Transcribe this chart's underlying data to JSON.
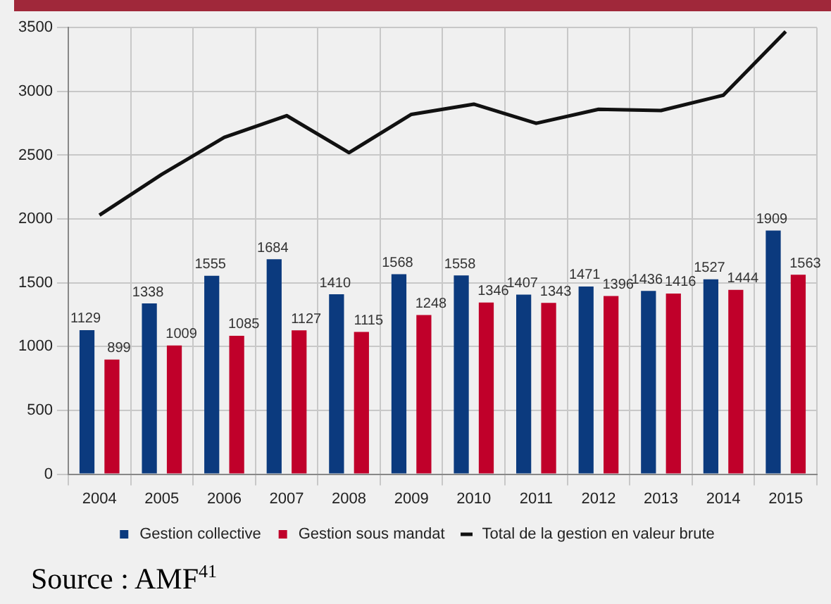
{
  "chart_data": {
    "type": "bar",
    "categories": [
      "2004",
      "2005",
      "2006",
      "2007",
      "2008",
      "2009",
      "2010",
      "2011",
      "2012",
      "2013",
      "2014",
      "2015"
    ],
    "series": [
      {
        "name": "Gestion collective",
        "color": "#0b3a7e",
        "values": [
          1129,
          1338,
          1555,
          1684,
          1410,
          1568,
          1558,
          1407,
          1471,
          1436,
          1527,
          1909
        ],
        "value_labels": [
          "1129",
          "1338",
          "1555",
          "1684",
          "1410",
          "1568",
          "1558",
          "1407",
          "1471",
          "1436",
          "1527",
          "1909"
        ]
      },
      {
        "name": "Gestion sous mandat",
        "color": "#c0002a",
        "values": [
          899,
          1009,
          1085,
          1127,
          1115,
          1248,
          1346,
          1343,
          1396,
          1416,
          1444,
          1563
        ],
        "value_labels": [
          "899",
          "1009",
          "1085",
          "1127",
          "1115",
          "1248",
          "1346",
          "1343",
          "1396",
          "1416",
          "1444",
          "1563"
        ]
      },
      {
        "name": "Total de la gestion en valeur brute",
        "type": "line",
        "color": "#111111",
        "values": [
          2030,
          2350,
          2640,
          2810,
          2520,
          2820,
          2900,
          2750,
          2860,
          2850,
          2970,
          3470
        ]
      }
    ],
    "ylim": [
      0,
      3500
    ],
    "yticks": [
      0,
      500,
      1000,
      1500,
      2000,
      2500,
      3000,
      3500
    ],
    "grid": true,
    "legend": "bottom",
    "annotations": [
      "Source : AMF$^{41}$"
    ]
  }
}
